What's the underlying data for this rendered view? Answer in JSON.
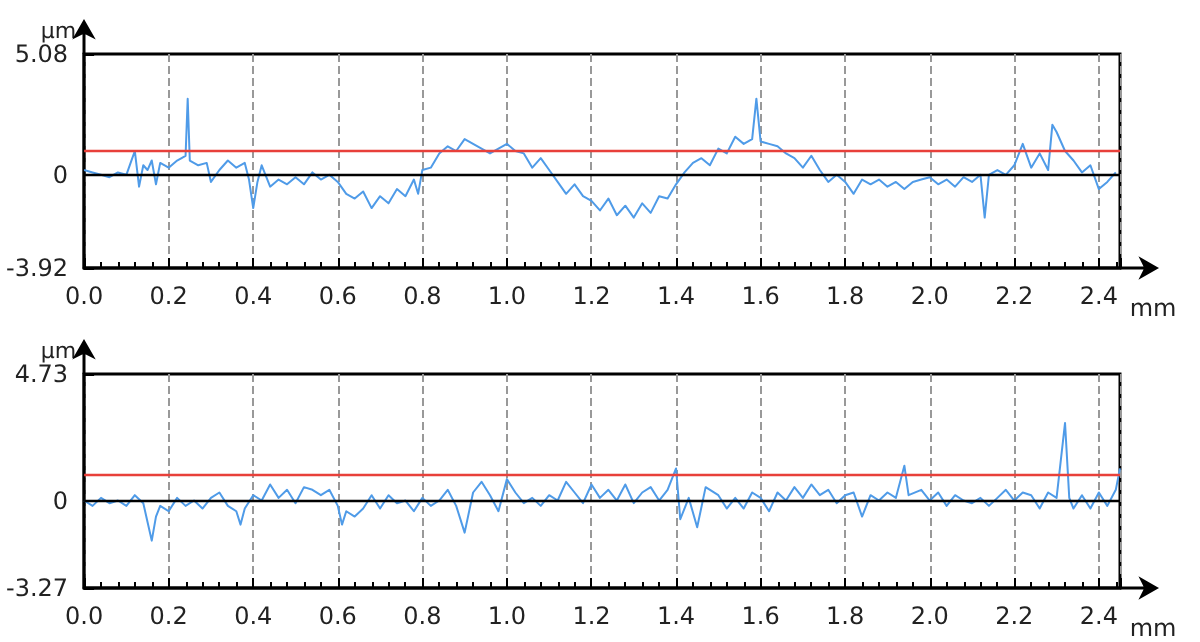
{
  "chart_data": [
    {
      "type": "line",
      "xlabel": "mm",
      "ylabel": "µm",
      "xlim": [
        0,
        2.45
      ],
      "ylim": [
        -3.92,
        5.08
      ],
      "xticks": [
        {
          "value": 0,
          "label": "0.0"
        },
        {
          "value": 0.2,
          "label": "0.2"
        },
        {
          "value": 0.4,
          "label": "0.4"
        },
        {
          "value": 0.6,
          "label": "0.6"
        },
        {
          "value": 0.8,
          "label": "0.8"
        },
        {
          "value": 1,
          "label": "1.0"
        },
        {
          "value": 1.2,
          "label": "1.2"
        },
        {
          "value": 1.4,
          "label": "1.4"
        },
        {
          "value": 1.6,
          "label": "1.6"
        },
        {
          "value": 1.8,
          "label": "1.8"
        },
        {
          "value": 2,
          "label": "2.0"
        },
        {
          "value": 2.2,
          "label": "2.2"
        },
        {
          "value": 2.4,
          "label": "2.4"
        }
      ],
      "yticks": [
        -3.92,
        0,
        5.08
      ],
      "grid": "x",
      "marker": "none",
      "line_style": "solid",
      "ref_lines": [
        {
          "axis": "y",
          "value": 0,
          "color": "#000000"
        },
        {
          "axis": "y",
          "value": 1.0,
          "color": "#e8403a"
        }
      ],
      "series": [
        {
          "color": "#4f9be8",
          "x": [
            0,
            0.02,
            0.04,
            0.06,
            0.08,
            0.1,
            0.11,
            0.12,
            0.13,
            0.14,
            0.15,
            0.16,
            0.17,
            0.18,
            0.2,
            0.22,
            0.24,
            0.245,
            0.25,
            0.27,
            0.29,
            0.3,
            0.32,
            0.34,
            0.36,
            0.38,
            0.39,
            0.4,
            0.41,
            0.42,
            0.44,
            0.46,
            0.48,
            0.5,
            0.52,
            0.54,
            0.56,
            0.58,
            0.6,
            0.62,
            0.64,
            0.66,
            0.68,
            0.7,
            0.72,
            0.74,
            0.76,
            0.78,
            0.79,
            0.8,
            0.82,
            0.84,
            0.86,
            0.88,
            0.9,
            0.92,
            0.94,
            0.96,
            0.98,
            1,
            1.02,
            1.04,
            1.06,
            1.08,
            1.1,
            1.12,
            1.14,
            1.16,
            1.18,
            1.2,
            1.22,
            1.24,
            1.26,
            1.28,
            1.3,
            1.32,
            1.34,
            1.36,
            1.38,
            1.4,
            1.42,
            1.44,
            1.46,
            1.48,
            1.5,
            1.52,
            1.54,
            1.56,
            1.58,
            1.59,
            1.6,
            1.62,
            1.64,
            1.66,
            1.68,
            1.7,
            1.72,
            1.74,
            1.76,
            1.78,
            1.8,
            1.82,
            1.84,
            1.86,
            1.88,
            1.9,
            1.92,
            1.94,
            1.96,
            1.98,
            2,
            2.02,
            2.04,
            2.06,
            2.08,
            2.1,
            2.12,
            2.13,
            2.14,
            2.16,
            2.18,
            2.2,
            2.22,
            2.24,
            2.26,
            2.28,
            2.29,
            2.3,
            2.32,
            2.34,
            2.36,
            2.38,
            2.4,
            2.42,
            2.44
          ],
          "values": [
            0.2,
            0.1,
            0.0,
            -0.1,
            0.1,
            0.0,
            0.5,
            1.0,
            -0.5,
            0.4,
            0.2,
            0.6,
            -0.4,
            0.5,
            0.3,
            0.6,
            0.8,
            3.2,
            0.6,
            0.4,
            0.5,
            -0.3,
            0.2,
            0.6,
            0.3,
            0.5,
            -0.2,
            -1.4,
            -0.3,
            0.4,
            -0.5,
            -0.2,
            -0.4,
            -0.1,
            -0.4,
            0.1,
            -0.2,
            0.0,
            -0.3,
            -0.8,
            -1.0,
            -0.7,
            -1.4,
            -0.9,
            -1.2,
            -0.6,
            -0.9,
            -0.2,
            -0.8,
            0.2,
            0.3,
            0.9,
            1.2,
            1.0,
            1.5,
            1.3,
            1.1,
            0.9,
            1.1,
            1.3,
            1.0,
            0.9,
            0.3,
            0.7,
            0.2,
            -0.3,
            -0.8,
            -0.4,
            -0.9,
            -1.1,
            -1.5,
            -1.0,
            -1.7,
            -1.3,
            -1.8,
            -1.2,
            -1.6,
            -0.9,
            -1.0,
            -0.4,
            0.1,
            0.5,
            0.7,
            0.4,
            1.1,
            0.9,
            1.6,
            1.3,
            1.5,
            3.2,
            1.4,
            1.3,
            1.2,
            0.9,
            0.7,
            0.3,
            0.8,
            0.2,
            -0.3,
            0.0,
            -0.3,
            -0.8,
            -0.2,
            -0.4,
            -0.2,
            -0.5,
            -0.3,
            -0.6,
            -0.3,
            -0.2,
            -0.1,
            -0.4,
            -0.2,
            -0.5,
            -0.1,
            -0.3,
            0.0,
            -1.8,
            0.0,
            0.2,
            0.0,
            0.4,
            1.3,
            0.3,
            0.9,
            0.2,
            2.1,
            1.8,
            1.0,
            0.6,
            0.1,
            0.4,
            -0.6,
            -0.3,
            0.1
          ]
        }
      ]
    },
    {
      "type": "line",
      "xlabel": "mm",
      "ylabel": "µm",
      "xlim": [
        0,
        2.45
      ],
      "ylim": [
        -3.27,
        4.73
      ],
      "xticks": [
        {
          "value": 0,
          "label": "0.0"
        },
        {
          "value": 0.2,
          "label": "0.2"
        },
        {
          "value": 0.4,
          "label": "0.4"
        },
        {
          "value": 0.6,
          "label": "0.6"
        },
        {
          "value": 0.8,
          "label": "0.8"
        },
        {
          "value": 1,
          "label": "1.0"
        },
        {
          "value": 1.2,
          "label": "1.2"
        },
        {
          "value": 1.4,
          "label": "1.4"
        },
        {
          "value": 1.6,
          "label": "1.6"
        },
        {
          "value": 1.8,
          "label": "1.8"
        },
        {
          "value": 2,
          "label": "2.0"
        },
        {
          "value": 2.2,
          "label": "2.2"
        },
        {
          "value": 2.4,
          "label": "2.4"
        }
      ],
      "yticks": [
        -3.27,
        0,
        4.73
      ],
      "grid": "x",
      "marker": "none",
      "line_style": "solid",
      "ref_lines": [
        {
          "axis": "y",
          "value": 0,
          "color": "#000000"
        },
        {
          "axis": "y",
          "value": 1.0,
          "color": "#e8403a"
        }
      ],
      "series": [
        {
          "color": "#4f9be8",
          "x": [
            0,
            0.02,
            0.04,
            0.06,
            0.08,
            0.1,
            0.12,
            0.14,
            0.15,
            0.16,
            0.17,
            0.18,
            0.2,
            0.22,
            0.24,
            0.26,
            0.28,
            0.3,
            0.32,
            0.34,
            0.36,
            0.37,
            0.38,
            0.4,
            0.42,
            0.44,
            0.46,
            0.48,
            0.5,
            0.52,
            0.54,
            0.56,
            0.58,
            0.6,
            0.61,
            0.62,
            0.64,
            0.66,
            0.68,
            0.7,
            0.72,
            0.74,
            0.76,
            0.78,
            0.8,
            0.82,
            0.84,
            0.86,
            0.88,
            0.9,
            0.92,
            0.94,
            0.96,
            0.98,
            1,
            1.02,
            1.04,
            1.06,
            1.08,
            1.1,
            1.12,
            1.14,
            1.16,
            1.18,
            1.2,
            1.22,
            1.24,
            1.26,
            1.28,
            1.3,
            1.32,
            1.34,
            1.36,
            1.38,
            1.4,
            1.41,
            1.43,
            1.45,
            1.47,
            1.5,
            1.52,
            1.54,
            1.56,
            1.58,
            1.6,
            1.62,
            1.64,
            1.66,
            1.68,
            1.7,
            1.72,
            1.74,
            1.76,
            1.78,
            1.8,
            1.82,
            1.84,
            1.86,
            1.88,
            1.9,
            1.92,
            1.94,
            1.95,
            1.98,
            2,
            2.02,
            2.04,
            2.06,
            2.08,
            2.1,
            2.12,
            2.14,
            2.16,
            2.18,
            2.2,
            2.22,
            2.24,
            2.26,
            2.28,
            2.3,
            2.32,
            2.33,
            2.34,
            2.36,
            2.38,
            2.4,
            2.42,
            2.44,
            2.45
          ],
          "values": [
            0.0,
            -0.2,
            0.1,
            -0.1,
            0.0,
            -0.2,
            0.2,
            -0.1,
            -0.8,
            -1.5,
            -0.6,
            -0.2,
            -0.4,
            0.1,
            -0.2,
            0.0,
            -0.3,
            0.1,
            0.3,
            -0.2,
            -0.4,
            -0.9,
            -0.3,
            0.2,
            0.0,
            0.6,
            0.1,
            0.4,
            -0.1,
            0.5,
            0.4,
            0.2,
            0.4,
            -0.2,
            -0.9,
            -0.4,
            -0.6,
            -0.3,
            0.2,
            -0.3,
            0.2,
            -0.1,
            0.0,
            -0.4,
            0.1,
            -0.2,
            0.0,
            0.4,
            -0.2,
            -1.2,
            0.3,
            0.7,
            0.2,
            -0.4,
            0.8,
            0.3,
            -0.1,
            0.1,
            -0.2,
            0.2,
            0.0,
            0.7,
            0.3,
            -0.1,
            0.6,
            0.1,
            0.4,
            0.0,
            0.6,
            -0.1,
            0.3,
            0.5,
            0.0,
            0.4,
            1.2,
            -0.7,
            0.1,
            -1.0,
            0.5,
            0.2,
            -0.3,
            0.1,
            -0.3,
            0.3,
            0.1,
            -0.4,
            0.3,
            0.0,
            0.5,
            0.1,
            0.6,
            0.2,
            0.4,
            -0.1,
            0.2,
            0.3,
            -0.6,
            0.2,
            0.0,
            0.3,
            0.1,
            1.3,
            0.2,
            0.4,
            0.0,
            0.3,
            -0.2,
            0.2,
            0.0,
            -0.1,
            0.1,
            -0.2,
            0.1,
            0.4,
            0.0,
            0.3,
            0.2,
            -0.3,
            0.3,
            0.1,
            2.9,
            0.1,
            -0.3,
            0.2,
            -0.3,
            0.3,
            -0.2,
            0.4,
            1.2
          ]
        }
      ]
    }
  ]
}
